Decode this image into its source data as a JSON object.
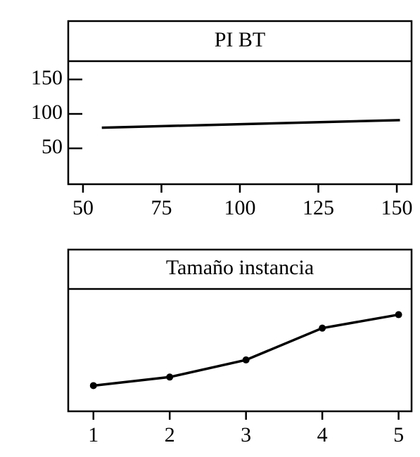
{
  "chart_data": [
    {
      "type": "line",
      "title": "PI BT",
      "x": [
        56,
        151
      ],
      "values": [
        80,
        91
      ],
      "color": "#000000",
      "xlim": [
        45.3,
        154.7
      ],
      "xticks": [
        50,
        75,
        100,
        125,
        150
      ],
      "ylim": [
        -2,
        176.5
      ],
      "yticks": [
        50,
        100,
        150
      ],
      "markers": false
    },
    {
      "type": "line",
      "title": "Tamaño   instancia",
      "x": [
        1,
        2,
        3,
        4,
        5
      ],
      "values": [
        21,
        28,
        42,
        68,
        79
      ],
      "color": "#000000",
      "xlim": [
        0.67,
        5.17
      ],
      "xticks": [
        1,
        2,
        3,
        4,
        5
      ],
      "ylim": [
        0,
        100
      ],
      "markers": true
    }
  ]
}
